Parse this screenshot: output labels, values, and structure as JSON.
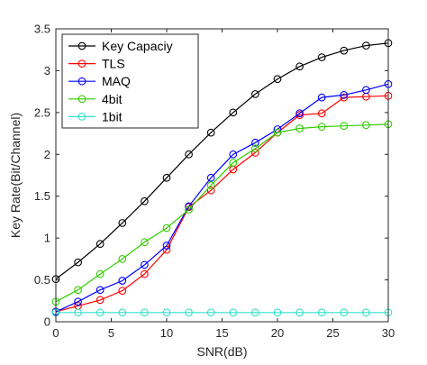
{
  "chart_data": {
    "type": "line",
    "title": "",
    "xlabel": "SNR(dB)",
    "ylabel": "Key Rate(Bit/Channel)",
    "xlim": [
      0,
      30
    ],
    "ylim": [
      0,
      3.5
    ],
    "xticks": [
      0,
      5,
      10,
      15,
      20,
      25,
      30
    ],
    "yticks": [
      0,
      0.5,
      1,
      1.5,
      2,
      2.5,
      3,
      3.5
    ],
    "grid": false,
    "legend_position": "top-left",
    "marker": "open-circle",
    "x": [
      0,
      2,
      4,
      6,
      8,
      10,
      12,
      14,
      16,
      18,
      20,
      22,
      24,
      26,
      28,
      30
    ],
    "series": [
      {
        "name": "Key Capaciy",
        "color": "#000000",
        "values": [
          0.51,
          0.71,
          0.93,
          1.18,
          1.44,
          1.72,
          2.0,
          2.26,
          2.5,
          2.72,
          2.9,
          3.05,
          3.16,
          3.24,
          3.3,
          3.33
        ]
      },
      {
        "name": "TLS",
        "color": "#ff0000",
        "values": [
          0.12,
          0.19,
          0.26,
          0.37,
          0.57,
          0.86,
          1.37,
          1.57,
          1.82,
          2.02,
          2.26,
          2.47,
          2.49,
          2.68,
          2.69,
          2.7
        ]
      },
      {
        "name": "MAQ",
        "color": "#0000ff",
        "values": [
          0.12,
          0.24,
          0.38,
          0.49,
          0.68,
          0.91,
          1.38,
          1.72,
          2.0,
          2.14,
          2.3,
          2.49,
          2.68,
          2.71,
          2.77,
          2.84
        ]
      },
      {
        "name": "4bit",
        "color": "#33cc00",
        "values": [
          0.24,
          0.38,
          0.57,
          0.75,
          0.95,
          1.12,
          1.34,
          1.63,
          1.9,
          2.07,
          2.26,
          2.31,
          2.33,
          2.34,
          2.35,
          2.36
        ]
      },
      {
        "name": "1bit",
        "color": "#33e0cc",
        "values": [
          0.11,
          0.11,
          0.11,
          0.11,
          0.11,
          0.11,
          0.11,
          0.11,
          0.11,
          0.11,
          0.11,
          0.11,
          0.11,
          0.11,
          0.11,
          0.11
        ]
      }
    ]
  }
}
